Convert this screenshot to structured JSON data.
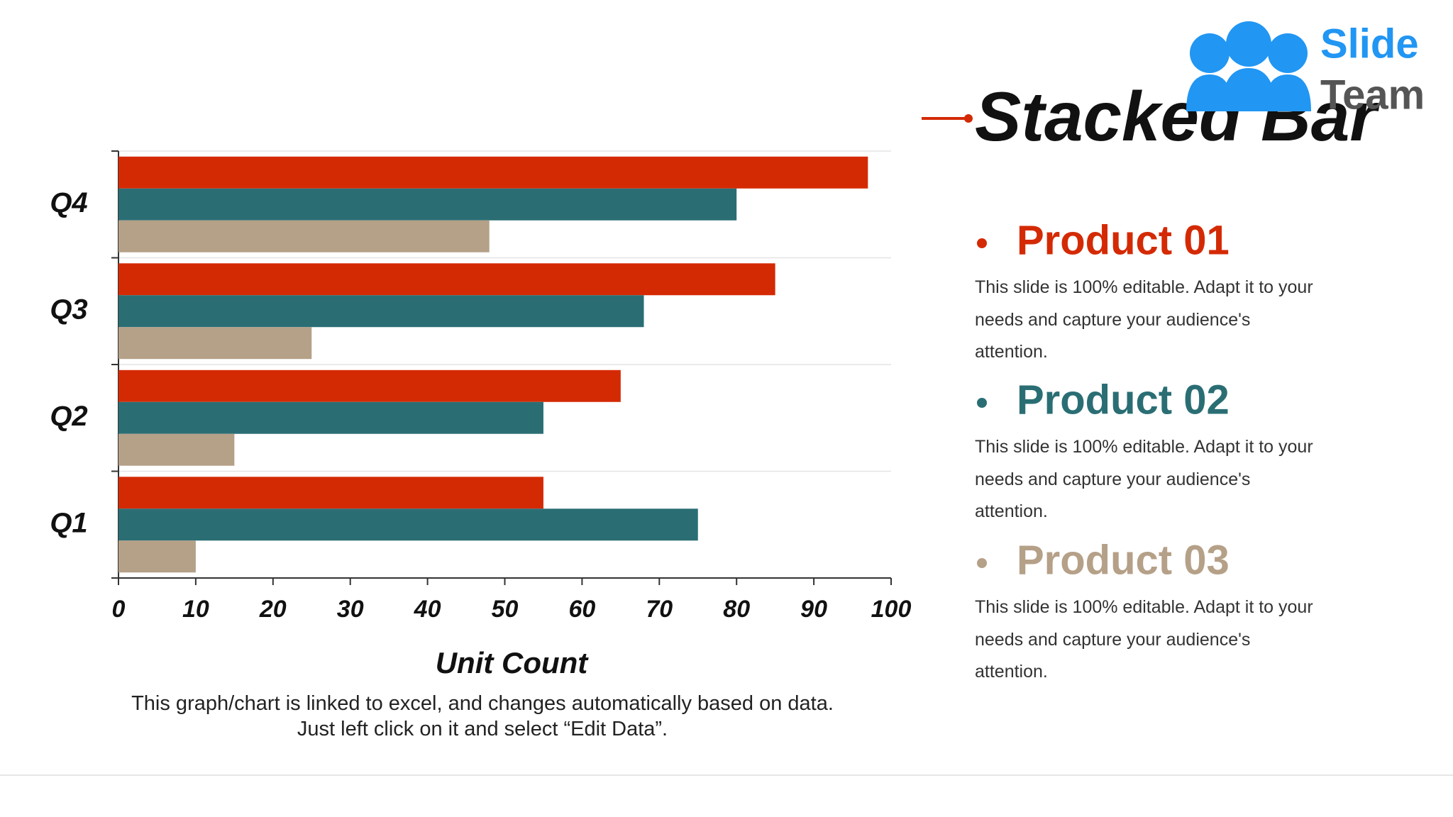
{
  "chart_data": {
    "type": "bar",
    "orientation": "horizontal",
    "title": "Stacked Bar",
    "categories": [
      "Q1",
      "Q2",
      "Q3",
      "Q4"
    ],
    "series": [
      {
        "name": "Product 01",
        "color": "#d42a04",
        "values": [
          55,
          65,
          85,
          97
        ],
        "description": "This slide is 100% editable. Adapt it to your needs and capture your audience's attention."
      },
      {
        "name": "Product 02",
        "color": "#2a6e74",
        "values": [
          75,
          55,
          68,
          80
        ],
        "description": "This slide is 100% editable. Adapt it to your needs and capture your audience's attention."
      },
      {
        "name": "Product 03",
        "color": "#b5a088",
        "values": [
          10,
          15,
          25,
          48
        ],
        "description": "This slide is 100% editable. Adapt it to your needs and capture your audience's attention."
      }
    ],
    "xlim": [
      0,
      100
    ],
    "xticks": [
      0,
      10,
      20,
      30,
      40,
      50,
      60,
      70,
      80,
      90,
      100
    ],
    "x_label": "Unit Count",
    "note": "This graph/chart is linked to excel, and changes automatically based on data. Just left click on it and select “Edit Data”."
  },
  "logo": {
    "line1": "Slide",
    "line2": "Team"
  }
}
